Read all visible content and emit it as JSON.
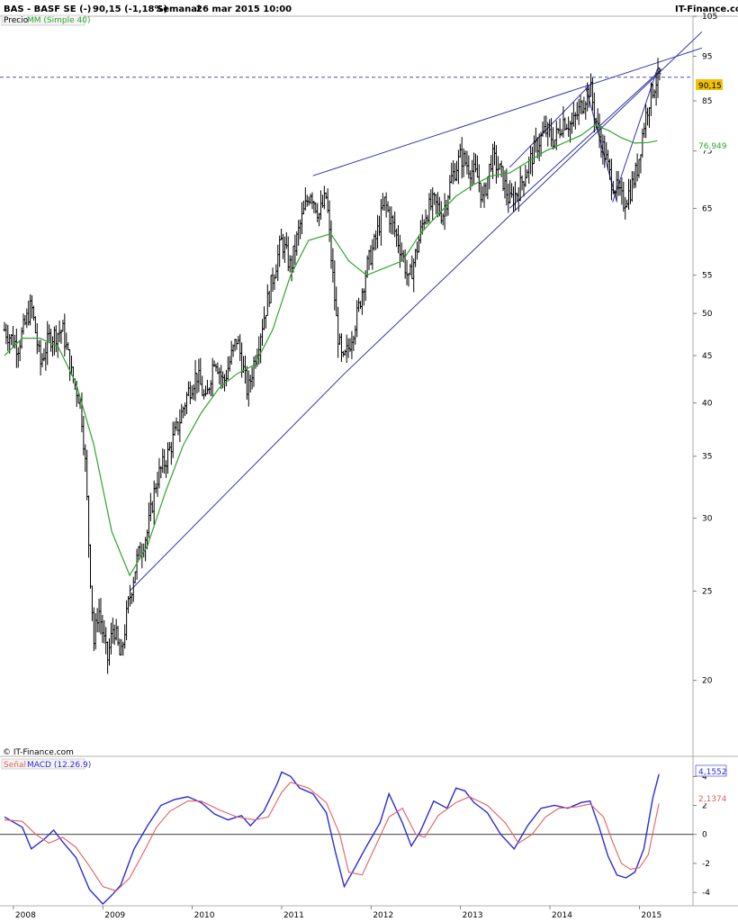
{
  "header": {
    "ticker": "BAS - BASF SE (-)",
    "last": "90,15 (-1,18%)",
    "period": "Semanal",
    "date": "26 mar 2015 10:00",
    "site": "IT-Finance.com"
  },
  "legend": {
    "price": "Precio",
    "ma": "MM (Simple 40)",
    "signal": "Señal",
    "macd": "MACD (12.26.9)"
  },
  "copyright": "© IT-Finance.com",
  "colors": {
    "price_bars": "#000000",
    "moving_average": "#2ea52e",
    "trendlines": "#3333aa",
    "macd_line": "#2b2bd6",
    "signal_line": "#e06060",
    "last_price_marker": "#f2c200",
    "grid": "#d9d9d9"
  },
  "chart_data": [
    {
      "type": "line",
      "name": "price",
      "scale": "log",
      "ylim": [
        17,
        105
      ],
      "y_ticks": [
        20,
        25,
        30,
        35,
        40,
        45,
        50,
        55,
        65,
        75,
        85,
        95,
        105
      ],
      "x_ticks": [
        "2008",
        "2009",
        "2010",
        "2011",
        "2012",
        "2013",
        "2014",
        "2015"
      ],
      "last_price_label": "90,15",
      "ma_label": "76,949",
      "price_series": [
        [
          2007.9,
          48
        ],
        [
          2008.05,
          46
        ],
        [
          2008.2,
          51
        ],
        [
          2008.3,
          44
        ],
        [
          2008.4,
          47
        ],
        [
          2008.55,
          48
        ],
        [
          2008.65,
          43
        ],
        [
          2008.75,
          40
        ],
        [
          2008.8,
          35
        ],
        [
          2008.85,
          27
        ],
        [
          2008.9,
          22
        ],
        [
          2008.95,
          24
        ],
        [
          2009.05,
          21
        ],
        [
          2009.12,
          23
        ],
        [
          2009.2,
          21
        ],
        [
          2009.28,
          24
        ],
        [
          2009.38,
          27
        ],
        [
          2009.5,
          29
        ],
        [
          2009.6,
          33
        ],
        [
          2009.72,
          35
        ],
        [
          2009.85,
          38
        ],
        [
          2009.95,
          41
        ],
        [
          2010.05,
          43
        ],
        [
          2010.15,
          40
        ],
        [
          2010.25,
          45
        ],
        [
          2010.35,
          42
        ],
        [
          2010.5,
          47
        ],
        [
          2010.62,
          41
        ],
        [
          2010.75,
          47
        ],
        [
          2010.85,
          52
        ],
        [
          2011.0,
          60
        ],
        [
          2011.1,
          56
        ],
        [
          2011.2,
          62
        ],
        [
          2011.32,
          68
        ],
        [
          2011.42,
          64
        ],
        [
          2011.5,
          67
        ],
        [
          2011.55,
          58
        ],
        [
          2011.62,
          48
        ],
        [
          2011.68,
          44
        ],
        [
          2011.75,
          46
        ],
        [
          2011.85,
          50
        ],
        [
          2011.95,
          56
        ],
        [
          2012.05,
          60
        ],
        [
          2012.15,
          66
        ],
        [
          2012.25,
          62
        ],
        [
          2012.35,
          58
        ],
        [
          2012.42,
          54
        ],
        [
          2012.5,
          58
        ],
        [
          2012.6,
          64
        ],
        [
          2012.7,
          66
        ],
        [
          2012.8,
          64
        ],
        [
          2012.9,
          70
        ],
        [
          2013.0,
          74
        ],
        [
          2013.1,
          72
        ],
        [
          2013.2,
          70
        ],
        [
          2013.25,
          66
        ],
        [
          2013.35,
          74
        ],
        [
          2013.45,
          71
        ],
        [
          2013.55,
          66
        ],
        [
          2013.65,
          68
        ],
        [
          2013.75,
          72
        ],
        [
          2013.85,
          76
        ],
        [
          2013.95,
          79
        ],
        [
          2014.05,
          77
        ],
        [
          2014.15,
          81
        ],
        [
          2014.25,
          80
        ],
        [
          2014.35,
          84
        ],
        [
          2014.45,
          88
        ],
        [
          2014.5,
          82
        ],
        [
          2014.55,
          78
        ],
        [
          2014.62,
          74
        ],
        [
          2014.68,
          70
        ],
        [
          2014.75,
          68
        ],
        [
          2014.82,
          66
        ],
        [
          2014.9,
          68
        ],
        [
          2014.98,
          72
        ],
        [
          2015.05,
          80
        ],
        [
          2015.12,
          86
        ],
        [
          2015.2,
          90
        ],
        [
          2015.23,
          90.15
        ]
      ],
      "ma_series": [
        [
          2007.9,
          45
        ],
        [
          2008.1,
          47
        ],
        [
          2008.3,
          47
        ],
        [
          2008.5,
          46
        ],
        [
          2008.7,
          42
        ],
        [
          2008.9,
          36
        ],
        [
          2009.1,
          29
        ],
        [
          2009.3,
          26
        ],
        [
          2009.5,
          28
        ],
        [
          2009.7,
          32
        ],
        [
          2009.9,
          36
        ],
        [
          2010.1,
          39
        ],
        [
          2010.3,
          41.5
        ],
        [
          2010.5,
          43
        ],
        [
          2010.7,
          44
        ],
        [
          2010.9,
          48
        ],
        [
          2011.1,
          55
        ],
        [
          2011.3,
          60
        ],
        [
          2011.55,
          61
        ],
        [
          2011.75,
          57
        ],
        [
          2011.95,
          55
        ],
        [
          2012.15,
          56
        ],
        [
          2012.35,
          57
        ],
        [
          2012.55,
          61
        ],
        [
          2012.75,
          64
        ],
        [
          2012.95,
          67
        ],
        [
          2013.15,
          69
        ],
        [
          2013.35,
          70.5
        ],
        [
          2013.55,
          71
        ],
        [
          2013.75,
          73
        ],
        [
          2013.95,
          75
        ],
        [
          2014.15,
          76.5
        ],
        [
          2014.35,
          78
        ],
        [
          2014.5,
          80
        ],
        [
          2014.65,
          79
        ],
        [
          2014.8,
          77.5
        ],
        [
          2014.95,
          76.5
        ],
        [
          2015.1,
          76.6
        ],
        [
          2015.2,
          76.949
        ]
      ],
      "trendlines": [
        [
          [
            2009.3,
            25
          ],
          [
            2011.7,
            43
          ],
          [
            2015.7,
            101
          ]
        ],
        [
          [
            2011.35,
            70.5
          ],
          [
            2015.7,
            97
          ]
        ],
        [
          [
            2013.55,
            65
          ],
          [
            2015.25,
            92
          ]
        ],
        [
          [
            2013.55,
            72
          ],
          [
            2014.45,
            88.5
          ]
        ],
        [
          [
            2014.4,
            88
          ],
          [
            2014.75,
            66
          ]
        ],
        [
          [
            2014.7,
            66
          ],
          [
            2015.2,
            92
          ]
        ]
      ],
      "hline": 90.15
    },
    {
      "type": "line",
      "name": "macd",
      "ylim": [
        -4.8,
        5.2
      ],
      "y_ticks": [
        -4,
        -2,
        0,
        2,
        4
      ],
      "x_ticks": [
        "2008",
        "2009",
        "2010",
        "2011",
        "2012",
        "2013",
        "2014",
        "2015"
      ],
      "macd_label": "4,1552",
      "signal_label": "2,1374",
      "series": [
        {
          "name": "MACD",
          "values": [
            [
              2007.9,
              1.2
            ],
            [
              2008.1,
              0.5
            ],
            [
              2008.2,
              -1.0
            ],
            [
              2008.35,
              -0.3
            ],
            [
              2008.45,
              0.3
            ],
            [
              2008.55,
              -0.5
            ],
            [
              2008.7,
              -1.6
            ],
            [
              2008.85,
              -3.8
            ],
            [
              2009.0,
              -4.8
            ],
            [
              2009.1,
              -4.2
            ],
            [
              2009.2,
              -3.5
            ],
            [
              2009.35,
              -1.0
            ],
            [
              2009.5,
              0.6
            ],
            [
              2009.65,
              2.0
            ],
            [
              2009.8,
              2.4
            ],
            [
              2009.95,
              2.6
            ],
            [
              2010.1,
              2.2
            ],
            [
              2010.25,
              1.4
            ],
            [
              2010.4,
              1.0
            ],
            [
              2010.55,
              1.3
            ],
            [
              2010.65,
              0.6
            ],
            [
              2010.8,
              1.6
            ],
            [
              2010.95,
              3.5
            ],
            [
              2011.0,
              4.3
            ],
            [
              2011.1,
              4.0
            ],
            [
              2011.2,
              3.2
            ],
            [
              2011.35,
              2.8
            ],
            [
              2011.5,
              1.5
            ],
            [
              2011.6,
              -1.2
            ],
            [
              2011.7,
              -3.6
            ],
            [
              2011.8,
              -2.5
            ],
            [
              2011.95,
              -0.8
            ],
            [
              2012.1,
              0.8
            ],
            [
              2012.2,
              2.8
            ],
            [
              2012.35,
              0.8
            ],
            [
              2012.45,
              -0.8
            ],
            [
              2012.55,
              0.2
            ],
            [
              2012.7,
              2.3
            ],
            [
              2012.85,
              1.8
            ],
            [
              2012.95,
              3.2
            ],
            [
              2013.05,
              3.0
            ],
            [
              2013.15,
              2.2
            ],
            [
              2013.3,
              1.5
            ],
            [
              2013.45,
              0.0
            ],
            [
              2013.6,
              -1.0
            ],
            [
              2013.75,
              0.6
            ],
            [
              2013.9,
              1.8
            ],
            [
              2014.05,
              2.0
            ],
            [
              2014.2,
              1.8
            ],
            [
              2014.35,
              2.2
            ],
            [
              2014.45,
              2.3
            ],
            [
              2014.55,
              0.5
            ],
            [
              2014.65,
              -1.5
            ],
            [
              2014.75,
              -2.8
            ],
            [
              2014.85,
              -3.0
            ],
            [
              2014.95,
              -2.6
            ],
            [
              2015.05,
              -1.0
            ],
            [
              2015.15,
              2.5
            ],
            [
              2015.22,
              4.1552
            ]
          ]
        },
        {
          "name": "Señal",
          "values": [
            [
              2007.9,
              1.0
            ],
            [
              2008.1,
              0.9
            ],
            [
              2008.25,
              0.0
            ],
            [
              2008.4,
              -0.6
            ],
            [
              2008.55,
              -0.2
            ],
            [
              2008.7,
              -0.9
            ],
            [
              2008.85,
              -2.2
            ],
            [
              2009.0,
              -3.6
            ],
            [
              2009.15,
              -3.9
            ],
            [
              2009.3,
              -3.0
            ],
            [
              2009.45,
              -1.3
            ],
            [
              2009.6,
              0.5
            ],
            [
              2009.75,
              1.6
            ],
            [
              2009.95,
              2.3
            ],
            [
              2010.1,
              2.3
            ],
            [
              2010.3,
              1.7
            ],
            [
              2010.5,
              1.2
            ],
            [
              2010.7,
              1.0
            ],
            [
              2010.85,
              1.2
            ],
            [
              2011.0,
              2.9
            ],
            [
              2011.1,
              3.6
            ],
            [
              2011.3,
              3.2
            ],
            [
              2011.5,
              2.2
            ],
            [
              2011.65,
              0.0
            ],
            [
              2011.75,
              -2.6
            ],
            [
              2011.9,
              -2.8
            ],
            [
              2012.05,
              -0.8
            ],
            [
              2012.2,
              1.2
            ],
            [
              2012.35,
              1.8
            ],
            [
              2012.5,
              0.0
            ],
            [
              2012.6,
              -0.2
            ],
            [
              2012.75,
              1.3
            ],
            [
              2012.95,
              2.2
            ],
            [
              2013.1,
              2.6
            ],
            [
              2013.3,
              2.0
            ],
            [
              2013.5,
              0.8
            ],
            [
              2013.65,
              -0.6
            ],
            [
              2013.8,
              0.0
            ],
            [
              2013.95,
              1.2
            ],
            [
              2014.1,
              1.8
            ],
            [
              2014.3,
              1.9
            ],
            [
              2014.45,
              2.1
            ],
            [
              2014.6,
              1.2
            ],
            [
              2014.7,
              -0.5
            ],
            [
              2014.8,
              -2.0
            ],
            [
              2014.9,
              -2.4
            ],
            [
              2015.0,
              -2.3
            ],
            [
              2015.1,
              -1.4
            ],
            [
              2015.22,
              2.1374
            ]
          ]
        }
      ]
    }
  ]
}
